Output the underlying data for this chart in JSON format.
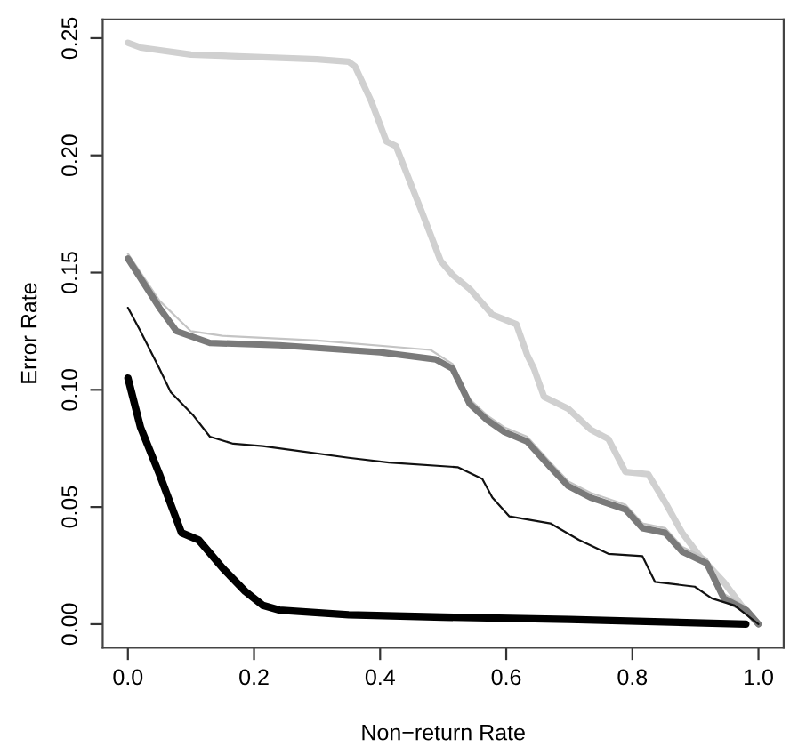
{
  "chart_data": {
    "type": "line",
    "xlabel": "Non−return Rate",
    "ylabel": "Error Rate",
    "xlim": [
      -0.04,
      1.04
    ],
    "ylim": [
      -0.01,
      0.258
    ],
    "xticks": [
      {
        "value": 0,
        "label": "0.0"
      },
      {
        "value": 0.2,
        "label": "0.2"
      },
      {
        "value": 0.4,
        "label": "0.4"
      },
      {
        "value": 0.6,
        "label": "0.6"
      },
      {
        "value": 0.8,
        "label": "0.8"
      },
      {
        "value": 1,
        "label": "1.0"
      }
    ],
    "yticks": [
      {
        "value": 0,
        "label": "0.00"
      },
      {
        "value": 0.05,
        "label": "0.05"
      },
      {
        "value": 0.1,
        "label": "0.10"
      },
      {
        "value": 0.15,
        "label": "0.15"
      },
      {
        "value": 0.2,
        "label": "0.20"
      },
      {
        "value": 0.25,
        "label": "0.25"
      }
    ],
    "grid": false,
    "marker": "none",
    "line_style": "solid",
    "series": [
      {
        "color": "#d0d0d0",
        "x": [
          0,
          0.02,
          0.1,
          0.3,
          0.35,
          0.36,
          0.386,
          0.41,
          0.425,
          0.466,
          0.496,
          0.515,
          0.542,
          0.578,
          0.616,
          0.633,
          0.644,
          0.66,
          0.698,
          0.734,
          0.762,
          0.789,
          0.825,
          0.852,
          0.879,
          0.907,
          0.945,
          0.973,
          1.0
        ],
        "values": [
          0.248,
          0.246,
          0.243,
          0.241,
          0.24,
          0.238,
          0.223,
          0.206,
          0.204,
          0.176,
          0.155,
          0.149,
          0.143,
          0.132,
          0.128,
          0.115,
          0.109,
          0.097,
          0.092,
          0.083,
          0.079,
          0.065,
          0.064,
          0.052,
          0.039,
          0.029,
          0.018,
          0.008,
          0.0
        ]
      },
      {
        "color": "#c4c4c4",
        "x": [
          0,
          0.05,
          0.1,
          0.15,
          0.3,
          0.48,
          0.515,
          0.542,
          0.57,
          0.597,
          0.633,
          0.67,
          0.698,
          0.734,
          0.789,
          0.816,
          0.852,
          0.879,
          0.918,
          0.945,
          0.981,
          1.0
        ],
        "values": [
          0.158,
          0.138,
          0.125,
          0.123,
          0.121,
          0.117,
          0.111,
          0.096,
          0.089,
          0.084,
          0.08,
          0.069,
          0.061,
          0.056,
          0.051,
          0.043,
          0.041,
          0.033,
          0.028,
          0.013,
          0.007,
          0.0
        ]
      },
      {
        "color": "#7a7a7a",
        "x": [
          0,
          0.05,
          0.077,
          0.13,
          0.24,
          0.4,
          0.488,
          0.515,
          0.542,
          0.57,
          0.597,
          0.633,
          0.67,
          0.698,
          0.734,
          0.789,
          0.816,
          0.852,
          0.879,
          0.918,
          0.945,
          0.981,
          1.0
        ],
        "values": [
          0.156,
          0.135,
          0.125,
          0.12,
          0.119,
          0.116,
          0.113,
          0.109,
          0.094,
          0.087,
          0.082,
          0.078,
          0.067,
          0.059,
          0.054,
          0.049,
          0.041,
          0.039,
          0.031,
          0.026,
          0.011,
          0.006,
          0.0
        ]
      },
      {
        "color": "#111111",
        "x": [
          0,
          0.02,
          0.05,
          0.068,
          0.104,
          0.13,
          0.167,
          0.214,
          0.35,
          0.414,
          0.523,
          0.562,
          0.578,
          0.605,
          0.67,
          0.715,
          0.762,
          0.816,
          0.836,
          0.899,
          0.926,
          0.962,
          1.0
        ],
        "values": [
          0.135,
          0.125,
          0.109,
          0.099,
          0.089,
          0.08,
          0.077,
          0.076,
          0.071,
          0.069,
          0.067,
          0.062,
          0.054,
          0.046,
          0.043,
          0.036,
          0.03,
          0.029,
          0.018,
          0.016,
          0.011,
          0.008,
          0.0
        ]
      },
      {
        "color": "#000000",
        "x": [
          0,
          0.02,
          0.05,
          0.085,
          0.112,
          0.15,
          0.186,
          0.214,
          0.24,
          0.35,
          0.5,
          0.7,
          0.98
        ],
        "values": [
          0.105,
          0.084,
          0.064,
          0.039,
          0.036,
          0.024,
          0.014,
          0.008,
          0.006,
          0.004,
          0.003,
          0.002,
          0.0
        ]
      }
    ]
  }
}
